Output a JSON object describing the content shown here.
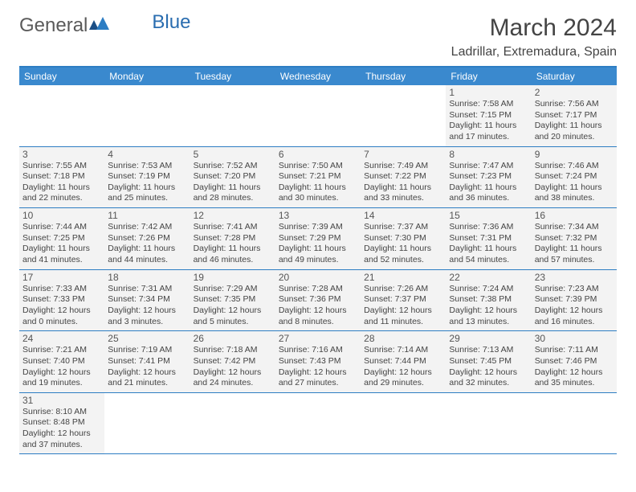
{
  "logo": {
    "general": "General",
    "blue": "Blue"
  },
  "title": "March 2024",
  "location": "Ladrillar, Extremadura, Spain",
  "colors": {
    "header_bg": "#3a89ce",
    "header_border": "#2d7dc3",
    "cell_bg": "#f3f3f3",
    "text": "#444444",
    "logo_gray": "#5a5a5a",
    "logo_blue": "#2a6db0"
  },
  "weekdays": [
    "Sunday",
    "Monday",
    "Tuesday",
    "Wednesday",
    "Thursday",
    "Friday",
    "Saturday"
  ],
  "weeks": [
    [
      null,
      null,
      null,
      null,
      null,
      {
        "n": "1",
        "sr": "Sunrise: 7:58 AM",
        "ss": "Sunset: 7:15 PM",
        "d1": "Daylight: 11 hours",
        "d2": "and 17 minutes."
      },
      {
        "n": "2",
        "sr": "Sunrise: 7:56 AM",
        "ss": "Sunset: 7:17 PM",
        "d1": "Daylight: 11 hours",
        "d2": "and 20 minutes."
      }
    ],
    [
      {
        "n": "3",
        "sr": "Sunrise: 7:55 AM",
        "ss": "Sunset: 7:18 PM",
        "d1": "Daylight: 11 hours",
        "d2": "and 22 minutes."
      },
      {
        "n": "4",
        "sr": "Sunrise: 7:53 AM",
        "ss": "Sunset: 7:19 PM",
        "d1": "Daylight: 11 hours",
        "d2": "and 25 minutes."
      },
      {
        "n": "5",
        "sr": "Sunrise: 7:52 AM",
        "ss": "Sunset: 7:20 PM",
        "d1": "Daylight: 11 hours",
        "d2": "and 28 minutes."
      },
      {
        "n": "6",
        "sr": "Sunrise: 7:50 AM",
        "ss": "Sunset: 7:21 PM",
        "d1": "Daylight: 11 hours",
        "d2": "and 30 minutes."
      },
      {
        "n": "7",
        "sr": "Sunrise: 7:49 AM",
        "ss": "Sunset: 7:22 PM",
        "d1": "Daylight: 11 hours",
        "d2": "and 33 minutes."
      },
      {
        "n": "8",
        "sr": "Sunrise: 7:47 AM",
        "ss": "Sunset: 7:23 PM",
        "d1": "Daylight: 11 hours",
        "d2": "and 36 minutes."
      },
      {
        "n": "9",
        "sr": "Sunrise: 7:46 AM",
        "ss": "Sunset: 7:24 PM",
        "d1": "Daylight: 11 hours",
        "d2": "and 38 minutes."
      }
    ],
    [
      {
        "n": "10",
        "sr": "Sunrise: 7:44 AM",
        "ss": "Sunset: 7:25 PM",
        "d1": "Daylight: 11 hours",
        "d2": "and 41 minutes."
      },
      {
        "n": "11",
        "sr": "Sunrise: 7:42 AM",
        "ss": "Sunset: 7:26 PM",
        "d1": "Daylight: 11 hours",
        "d2": "and 44 minutes."
      },
      {
        "n": "12",
        "sr": "Sunrise: 7:41 AM",
        "ss": "Sunset: 7:28 PM",
        "d1": "Daylight: 11 hours",
        "d2": "and 46 minutes."
      },
      {
        "n": "13",
        "sr": "Sunrise: 7:39 AM",
        "ss": "Sunset: 7:29 PM",
        "d1": "Daylight: 11 hours",
        "d2": "and 49 minutes."
      },
      {
        "n": "14",
        "sr": "Sunrise: 7:37 AM",
        "ss": "Sunset: 7:30 PM",
        "d1": "Daylight: 11 hours",
        "d2": "and 52 minutes."
      },
      {
        "n": "15",
        "sr": "Sunrise: 7:36 AM",
        "ss": "Sunset: 7:31 PM",
        "d1": "Daylight: 11 hours",
        "d2": "and 54 minutes."
      },
      {
        "n": "16",
        "sr": "Sunrise: 7:34 AM",
        "ss": "Sunset: 7:32 PM",
        "d1": "Daylight: 11 hours",
        "d2": "and 57 minutes."
      }
    ],
    [
      {
        "n": "17",
        "sr": "Sunrise: 7:33 AM",
        "ss": "Sunset: 7:33 PM",
        "d1": "Daylight: 12 hours",
        "d2": "and 0 minutes."
      },
      {
        "n": "18",
        "sr": "Sunrise: 7:31 AM",
        "ss": "Sunset: 7:34 PM",
        "d1": "Daylight: 12 hours",
        "d2": "and 3 minutes."
      },
      {
        "n": "19",
        "sr": "Sunrise: 7:29 AM",
        "ss": "Sunset: 7:35 PM",
        "d1": "Daylight: 12 hours",
        "d2": "and 5 minutes."
      },
      {
        "n": "20",
        "sr": "Sunrise: 7:28 AM",
        "ss": "Sunset: 7:36 PM",
        "d1": "Daylight: 12 hours",
        "d2": "and 8 minutes."
      },
      {
        "n": "21",
        "sr": "Sunrise: 7:26 AM",
        "ss": "Sunset: 7:37 PM",
        "d1": "Daylight: 12 hours",
        "d2": "and 11 minutes."
      },
      {
        "n": "22",
        "sr": "Sunrise: 7:24 AM",
        "ss": "Sunset: 7:38 PM",
        "d1": "Daylight: 12 hours",
        "d2": "and 13 minutes."
      },
      {
        "n": "23",
        "sr": "Sunrise: 7:23 AM",
        "ss": "Sunset: 7:39 PM",
        "d1": "Daylight: 12 hours",
        "d2": "and 16 minutes."
      }
    ],
    [
      {
        "n": "24",
        "sr": "Sunrise: 7:21 AM",
        "ss": "Sunset: 7:40 PM",
        "d1": "Daylight: 12 hours",
        "d2": "and 19 minutes."
      },
      {
        "n": "25",
        "sr": "Sunrise: 7:19 AM",
        "ss": "Sunset: 7:41 PM",
        "d1": "Daylight: 12 hours",
        "d2": "and 21 minutes."
      },
      {
        "n": "26",
        "sr": "Sunrise: 7:18 AM",
        "ss": "Sunset: 7:42 PM",
        "d1": "Daylight: 12 hours",
        "d2": "and 24 minutes."
      },
      {
        "n": "27",
        "sr": "Sunrise: 7:16 AM",
        "ss": "Sunset: 7:43 PM",
        "d1": "Daylight: 12 hours",
        "d2": "and 27 minutes."
      },
      {
        "n": "28",
        "sr": "Sunrise: 7:14 AM",
        "ss": "Sunset: 7:44 PM",
        "d1": "Daylight: 12 hours",
        "d2": "and 29 minutes."
      },
      {
        "n": "29",
        "sr": "Sunrise: 7:13 AM",
        "ss": "Sunset: 7:45 PM",
        "d1": "Daylight: 12 hours",
        "d2": "and 32 minutes."
      },
      {
        "n": "30",
        "sr": "Sunrise: 7:11 AM",
        "ss": "Sunset: 7:46 PM",
        "d1": "Daylight: 12 hours",
        "d2": "and 35 minutes."
      }
    ],
    [
      {
        "n": "31",
        "sr": "Sunrise: 8:10 AM",
        "ss": "Sunset: 8:48 PM",
        "d1": "Daylight: 12 hours",
        "d2": "and 37 minutes."
      },
      null,
      null,
      null,
      null,
      null,
      null
    ]
  ]
}
